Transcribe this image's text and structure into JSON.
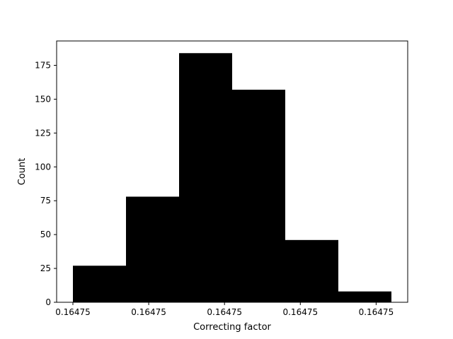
{
  "chart_data": {
    "type": "bar",
    "title": "",
    "xlabel": "Correcting factor",
    "ylabel": "Count",
    "bins": [
      {
        "index": 0,
        "value": 27
      },
      {
        "index": 1,
        "value": 78
      },
      {
        "index": 2,
        "value": 184
      },
      {
        "index": 3,
        "value": 157
      },
      {
        "index": 4,
        "value": 46
      },
      {
        "index": 5,
        "value": 8
      }
    ],
    "x_ticks": [
      {
        "pos": 0,
        "label": "0.16475"
      },
      {
        "pos": 1.4,
        "label": "0.16475"
      },
      {
        "pos": 2.8,
        "label": "0.16475"
      },
      {
        "pos": 4.2,
        "label": "0.16475"
      },
      {
        "pos": 5.6,
        "label": "0.16475"
      }
    ],
    "y_ticks": [
      0,
      25,
      50,
      75,
      100,
      125,
      150,
      175
    ],
    "ylim": [
      0,
      193
    ],
    "grid": false,
    "bar_color": "#000000"
  }
}
